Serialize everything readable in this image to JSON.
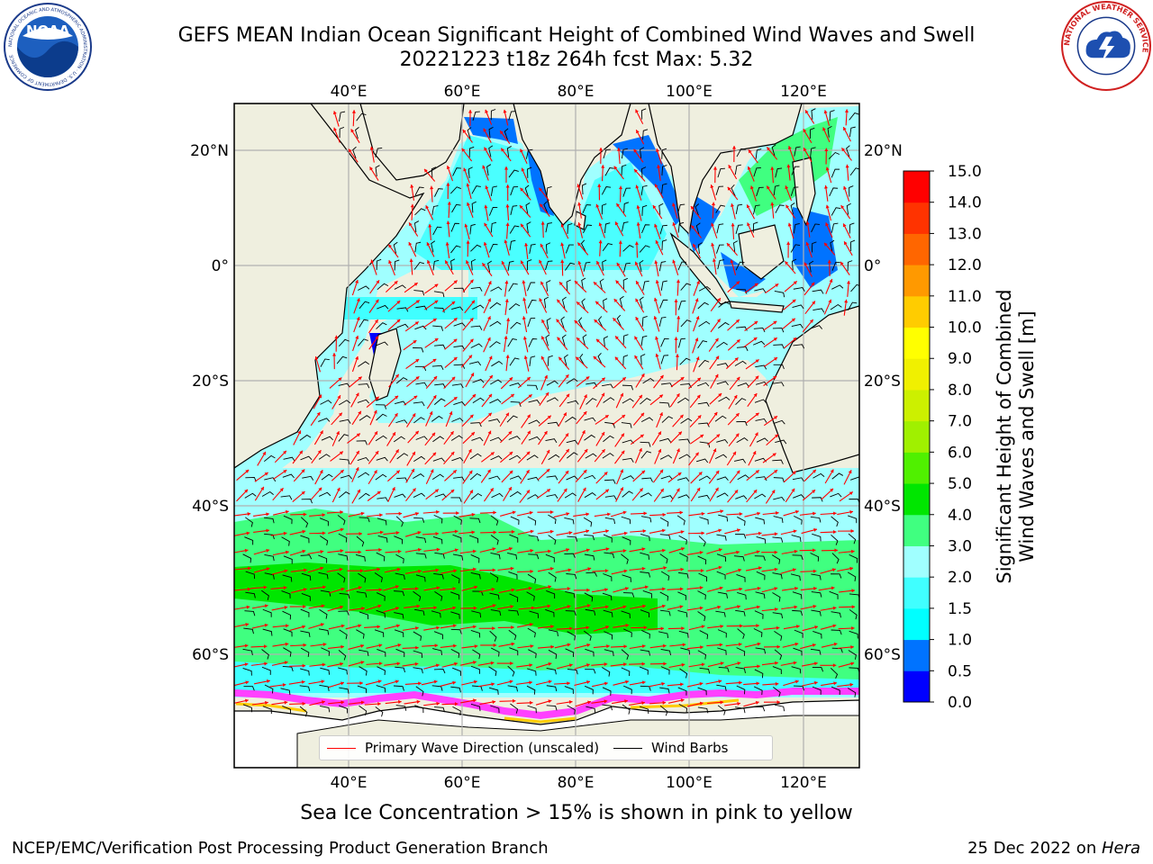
{
  "header": {
    "title_line1": "GEFS MEAN Indian Ocean Significant Height of Combined Wind Waves and Swell",
    "title_line2": "20221223 t18z 264h fcst   Max: 5.32"
  },
  "logos": {
    "noaa": {
      "text": "NOAA",
      "ring": "NATIONAL OCEANIC AND ATMOSPHERIC ADMINISTRATION · U.S. DEPARTMENT OF COMMERCE"
    },
    "nws": {
      "ring": "NATIONAL WEATHER SERVICE"
    }
  },
  "map": {
    "top_lon_labels": [
      "40°E",
      "60°E",
      "80°E",
      "100°E",
      "120°E"
    ],
    "bottom_lon_labels": [
      "40°E",
      "60°E",
      "80°E",
      "100°E",
      "120°E"
    ],
    "left_lat_labels": [
      "20°N",
      "0°",
      "20°S",
      "40°S",
      "60°S"
    ],
    "right_lat_labels": [
      "20°N",
      "0°",
      "20°S",
      "40°S",
      "60°S"
    ],
    "colors": {
      "land": "#efefdf",
      "ice_free_land": "#ffffff",
      "wave_arrow": "#ff0000",
      "wind_barb": "#000000",
      "grid": "#b0b0b0"
    }
  },
  "legend": {
    "wave_label": "Primary Wave Direction (unscaled)",
    "wind_label": "Wind Barbs",
    "wave_color": "#ff0000",
    "wind_color": "#000000"
  },
  "colorbar": {
    "title_line1": "Significant Height of Combined",
    "title_line2": "Wind Waves and Swell [m]",
    "tick_labels": [
      "0.0",
      "0.5",
      "1.0",
      "1.5",
      "2.0",
      "3.0",
      "4.0",
      "5.0",
      "6.0",
      "7.0",
      "8.0",
      "9.0",
      "10.0",
      "11.0",
      "12.0",
      "13.0",
      "14.0",
      "15.0"
    ],
    "colors": [
      "#0000ff",
      "#0073ff",
      "#00ffff",
      "#40ffff",
      "#a0ffff",
      "#40ff80",
      "#00e600",
      "#50f000",
      "#a0f000",
      "#ccf000",
      "#f0f000",
      "#ffff00",
      "#ffcc00",
      "#ff9900",
      "#ff6600",
      "#ff3300",
      "#ff0000"
    ]
  },
  "caption": "Sea Ice Concentration > 15% is shown in pink to yellow",
  "footer": {
    "left": "NCEP/EMC/Verification Post Processing Product Generation Branch",
    "right_date": "25 Dec 2022 on ",
    "right_host": "Hera"
  }
}
